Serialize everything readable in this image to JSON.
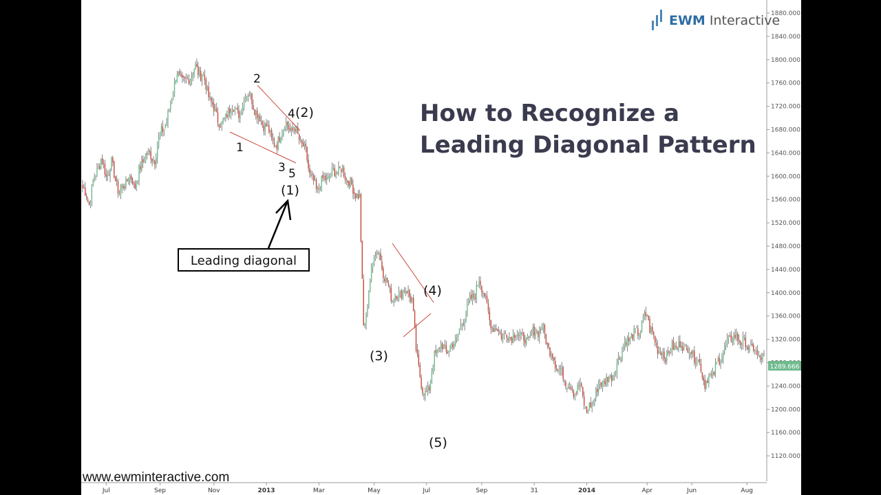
{
  "chart_data": {
    "type": "candlestick",
    "title_lines": [
      "How to Recognize a",
      "Leading Diagonal Pattern"
    ],
    "price_label": "1289.666",
    "ylim": [
      1100,
      1880
    ],
    "y_ticks": [
      "1880.000",
      "1840.000",
      "1800.000",
      "1760.000",
      "1720.000",
      "1680.000",
      "1640.000",
      "1600.000",
      "1560.000",
      "1520.000",
      "1480.000",
      "1440.000",
      "1400.000",
      "1360.000",
      "1320.000",
      "1280.000",
      "1240.000",
      "1200.000",
      "1160.000",
      "1120.000"
    ],
    "x_ticks": [
      {
        "label": "Jul",
        "idx": 18,
        "bold": false
      },
      {
        "label": "Sep",
        "idx": 59,
        "bold": false
      },
      {
        "label": "Nov",
        "idx": 100,
        "bold": false
      },
      {
        "label": "2013",
        "idx": 140,
        "bold": true
      },
      {
        "label": "Mar",
        "idx": 180,
        "bold": false
      },
      {
        "label": "May",
        "idx": 222,
        "bold": false
      },
      {
        "label": "Jul",
        "idx": 262,
        "bold": false
      },
      {
        "label": "Sep",
        "idx": 304,
        "bold": false
      },
      {
        "label": "31",
        "idx": 344,
        "bold": false
      },
      {
        "label": "2014",
        "idx": 384,
        "bold": true
      },
      {
        "label": "Apr",
        "idx": 430,
        "bold": false
      },
      {
        "label": "Jun",
        "idx": 464,
        "bold": false
      },
      {
        "label": "Aug",
        "idx": 506,
        "bold": false
      }
    ],
    "bar_count": 520,
    "path_points": [
      [
        0,
        1580
      ],
      [
        5,
        1555
      ],
      [
        8,
        1590
      ],
      [
        14,
        1630
      ],
      [
        18,
        1600
      ],
      [
        22,
        1620
      ],
      [
        28,
        1570
      ],
      [
        35,
        1600
      ],
      [
        40,
        1585
      ],
      [
        48,
        1640
      ],
      [
        55,
        1630
      ],
      [
        60,
        1680
      ],
      [
        64,
        1690
      ],
      [
        68,
        1740
      ],
      [
        72,
        1775
      ],
      [
        78,
        1760
      ],
      [
        86,
        1785
      ],
      [
        92,
        1770
      ],
      [
        98,
        1725
      ],
      [
        103,
        1700
      ],
      [
        106,
        1685
      ],
      [
        110,
        1710
      ],
      [
        116,
        1720
      ],
      [
        120,
        1700
      ],
      [
        124,
        1745
      ],
      [
        128,
        1735
      ],
      [
        134,
        1700
      ],
      [
        140,
        1685
      ],
      [
        144,
        1665
      ],
      [
        148,
        1650
      ],
      [
        151,
        1675
      ],
      [
        154,
        1690
      ],
      [
        158,
        1680
      ],
      [
        162,
        1680
      ],
      [
        166,
        1660
      ],
      [
        170,
        1640
      ],
      [
        173,
        1605
      ],
      [
        178,
        1575
      ],
      [
        182,
        1590
      ],
      [
        188,
        1600
      ],
      [
        193,
        1610
      ],
      [
        198,
        1610
      ],
      [
        203,
        1590
      ],
      [
        207,
        1575
      ],
      [
        211,
        1560
      ],
      [
        214,
        1345
      ],
      [
        216,
        1360
      ],
      [
        219,
        1420
      ],
      [
        222,
        1470
      ],
      [
        226,
        1465
      ],
      [
        231,
        1420
      ],
      [
        236,
        1390
      ],
      [
        240,
        1395
      ],
      [
        244,
        1405
      ],
      [
        248,
        1400
      ],
      [
        251,
        1390
      ],
      [
        254,
        1300
      ],
      [
        257,
        1260
      ],
      [
        259,
        1230
      ],
      [
        261,
        1225
      ],
      [
        264,
        1240
      ],
      [
        268,
        1290
      ],
      [
        272,
        1310
      ],
      [
        277,
        1300
      ],
      [
        282,
        1310
      ],
      [
        288,
        1340
      ],
      [
        294,
        1380
      ],
      [
        299,
        1400
      ],
      [
        302,
        1420
      ],
      [
        306,
        1400
      ],
      [
        310,
        1350
      ],
      [
        318,
        1330
      ],
      [
        325,
        1325
      ],
      [
        333,
        1330
      ],
      [
        338,
        1315
      ],
      [
        343,
        1330
      ],
      [
        350,
        1340
      ],
      [
        356,
        1300
      ],
      [
        362,
        1270
      ],
      [
        368,
        1250
      ],
      [
        374,
        1230
      ],
      [
        379,
        1240
      ],
      [
        384,
        1195
      ],
      [
        388,
        1210
      ],
      [
        394,
        1245
      ],
      [
        400,
        1250
      ],
      [
        406,
        1270
      ],
      [
        412,
        1310
      ],
      [
        418,
        1325
      ],
      [
        424,
        1335
      ],
      [
        430,
        1365
      ],
      [
        432,
        1340
      ],
      [
        437,
        1310
      ],
      [
        443,
        1290
      ],
      [
        449,
        1305
      ],
      [
        455,
        1310
      ],
      [
        461,
        1305
      ],
      [
        467,
        1290
      ],
      [
        471,
        1270
      ],
      [
        474,
        1245
      ],
      [
        480,
        1260
      ],
      [
        484,
        1280
      ],
      [
        488,
        1300
      ],
      [
        494,
        1325
      ],
      [
        500,
        1320
      ],
      [
        506,
        1310
      ],
      [
        512,
        1300
      ],
      [
        518,
        1285
      ],
      [
        520,
        1289
      ]
    ],
    "annotations": {
      "minor_1": "1",
      "minor_2": "2",
      "minor_3": "3",
      "minor_4": "4",
      "minor_5": "5",
      "wave_1": "(1)",
      "wave_2": "(2)",
      "wave_3": "(3)",
      "wave_4": "(4)",
      "wave_5": "(5)"
    },
    "colors": {
      "up": "#6fba8f",
      "down": "#c9473a",
      "trendline": "#c9473a"
    }
  },
  "callout": {
    "label": "Leading diagonal"
  },
  "logo": {
    "brand": "EWM",
    "suffix": " Interactive"
  },
  "website": "www.ewminteractive.com"
}
